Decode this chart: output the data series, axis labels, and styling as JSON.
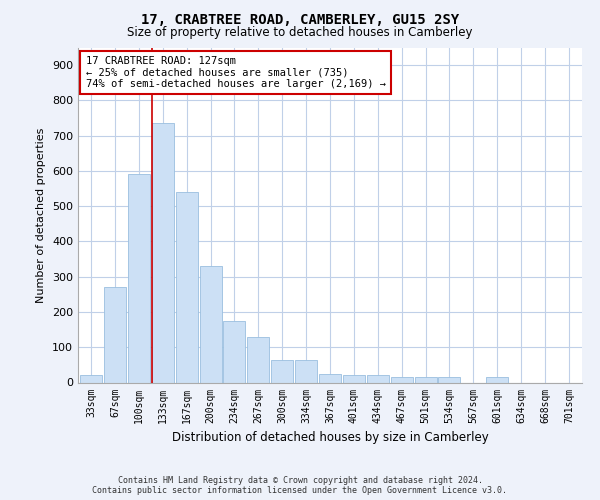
{
  "title": "17, CRABTREE ROAD, CAMBERLEY, GU15 2SY",
  "subtitle": "Size of property relative to detached houses in Camberley",
  "xlabel": "Distribution of detached houses by size in Camberley",
  "ylabel": "Number of detached properties",
  "categories": [
    "33sqm",
    "67sqm",
    "100sqm",
    "133sqm",
    "167sqm",
    "200sqm",
    "234sqm",
    "267sqm",
    "300sqm",
    "334sqm",
    "367sqm",
    "401sqm",
    "434sqm",
    "467sqm",
    "501sqm",
    "534sqm",
    "567sqm",
    "601sqm",
    "634sqm",
    "668sqm",
    "701sqm"
  ],
  "values": [
    20,
    270,
    590,
    735,
    540,
    330,
    175,
    130,
    65,
    65,
    25,
    20,
    20,
    15,
    15,
    15,
    0,
    15,
    0,
    0,
    0
  ],
  "bar_color": "#cce0f5",
  "bar_edge_color": "#9abfdf",
  "vline_x_index": 3,
  "vline_color": "#cc0000",
  "annotation_text": "17 CRABTREE ROAD: 127sqm\n← 25% of detached houses are smaller (735)\n74% of semi-detached houses are larger (2,169) →",
  "annotation_box_color": "#ffffff",
  "annotation_box_edge": "#cc0000",
  "ylim": [
    0,
    950
  ],
  "yticks": [
    0,
    100,
    200,
    300,
    400,
    500,
    600,
    700,
    800,
    900
  ],
  "footer_line1": "Contains HM Land Registry data © Crown copyright and database right 2024.",
  "footer_line2": "Contains public sector information licensed under the Open Government Licence v3.0.",
  "bg_color": "#eef2fa",
  "plot_bg_color": "#ffffff",
  "grid_color": "#c0d0e8"
}
